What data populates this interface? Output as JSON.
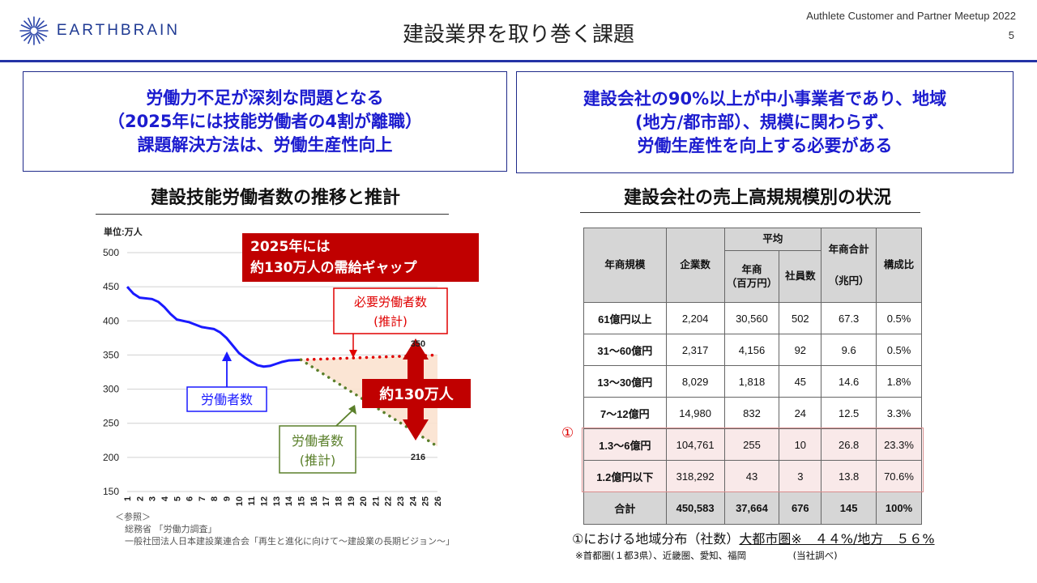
{
  "header": {
    "logo_text": "EARTHBRAIN",
    "title": "建設業界を取り巻く課題",
    "meetup": "Authlete Customer and Partner Meetup 2022",
    "page_number": "5"
  },
  "callouts": {
    "left": [
      "労働力不足が深刻な問題となる",
      "（2025年には技能労働者の4割が離職）",
      "課題解決方法は、労働生産性向上"
    ],
    "right": [
      "建設会社の90%以上が中小事業者であり、地域",
      "(地方/都市部）、規模に関わらず、",
      "労働生産性を向上する必要がある"
    ]
  },
  "left_section": {
    "title": "建設技能労働者数の推移と推計",
    "unit": "単位:万人",
    "gap_banner": [
      "2025年には",
      "約130万人の需給ギャップ"
    ],
    "required_label": [
      "必要労働者数",
      "(推計)"
    ],
    "workers_label": "労働者数",
    "workers_forecast_label": [
      "労働者数",
      "(推計)"
    ],
    "gap_label": "約130万人",
    "end_required": "350",
    "end_forecast": "216",
    "refs": [
      "＜参照＞",
      "総務省 「労働力調査」",
      "一般社団法人日本建設業連合会「再生と進化に向けて〜建設業の長期ビジョン〜」"
    ]
  },
  "chart_data": {
    "type": "line",
    "ylabel": "単位:万人",
    "ylim": [
      150,
      500
    ],
    "yticks": [
      150,
      200,
      250,
      300,
      350,
      400,
      450,
      500
    ],
    "x": [
      1,
      2,
      3,
      4,
      5,
      6,
      7,
      8,
      9,
      10,
      11,
      12,
      13,
      14,
      15,
      16,
      17,
      18,
      19,
      20,
      21,
      22,
      23,
      24,
      25,
      26
    ],
    "series": [
      {
        "name": "労働者数",
        "color": "#1a1aff",
        "style": "solid",
        "points": [
          [
            1,
            450
          ],
          [
            1.5,
            440
          ],
          [
            2,
            434
          ],
          [
            3,
            432
          ],
          [
            3.5,
            428
          ],
          [
            4,
            420
          ],
          [
            4.5,
            410
          ],
          [
            5,
            402
          ],
          [
            6,
            398
          ],
          [
            7,
            391
          ],
          [
            8,
            388
          ],
          [
            8.5,
            383
          ],
          [
            9,
            375
          ],
          [
            9.5,
            364
          ],
          [
            10,
            353
          ],
          [
            10.5,
            346
          ],
          [
            11,
            340
          ],
          [
            11.5,
            335
          ],
          [
            12,
            333
          ],
          [
            12.5,
            334
          ],
          [
            13,
            337
          ],
          [
            13.5,
            340
          ],
          [
            14,
            342
          ],
          [
            15,
            343
          ]
        ]
      },
      {
        "name": "必要労働者数(推計)",
        "color": "#e00000",
        "style": "dotted",
        "points": [
          [
            15,
            343
          ],
          [
            26,
            350
          ]
        ]
      },
      {
        "name": "労働者数(推計)",
        "color": "#5a7f2a",
        "style": "dotted",
        "points": [
          [
            15,
            343
          ],
          [
            26,
            216
          ]
        ]
      }
    ]
  },
  "right_section": {
    "title": "建設会社の売上高規規模別の状況",
    "headers": {
      "scale": "年商規模",
      "companies": "企業数",
      "average": "平均",
      "avg_revenue": [
        "年商",
        "（百万円）"
      ],
      "employees": "社員数",
      "total_revenue": [
        "年商合計",
        "（兆円）"
      ],
      "ratio": "構成比"
    },
    "rows": [
      {
        "scale": "61億円以上",
        "companies": "2,204",
        "revenue": "30,560",
        "employees": "502",
        "total": "67.3",
        "ratio": "0.5%"
      },
      {
        "scale": "31〜60億円",
        "companies": "2,317",
        "revenue": "4,156",
        "employees": "92",
        "total": "9.6",
        "ratio": "0.5%"
      },
      {
        "scale": "13〜30億円",
        "companies": "8,029",
        "revenue": "1,818",
        "employees": "45",
        "total": "14.6",
        "ratio": "1.8%"
      },
      {
        "scale": "7〜12億円",
        "companies": "14,980",
        "revenue": "832",
        "employees": "24",
        "total": "12.5",
        "ratio": "3.3%"
      },
      {
        "scale": "1.3〜6億円",
        "companies": "104,761",
        "revenue": "255",
        "employees": "10",
        "total": "26.8",
        "ratio": "23.3%"
      },
      {
        "scale": "1.2億円以下",
        "companies": "318,292",
        "revenue": "43",
        "employees": "3",
        "total": "13.8",
        "ratio": "70.6%"
      }
    ],
    "total_row": {
      "scale": "合計",
      "companies": "450,583",
      "revenue": "37,664",
      "employees": "676",
      "total": "145",
      "ratio": "100%"
    },
    "marker": "①",
    "region_note_a": "①における地域分布（社数）",
    "region_note_b": "大都市圏※　４４%/地方　５６%",
    "region_sub": "※首都圏(１都3県）、近畿圏、愛知、福岡　　　　　(当社調べ)"
  }
}
